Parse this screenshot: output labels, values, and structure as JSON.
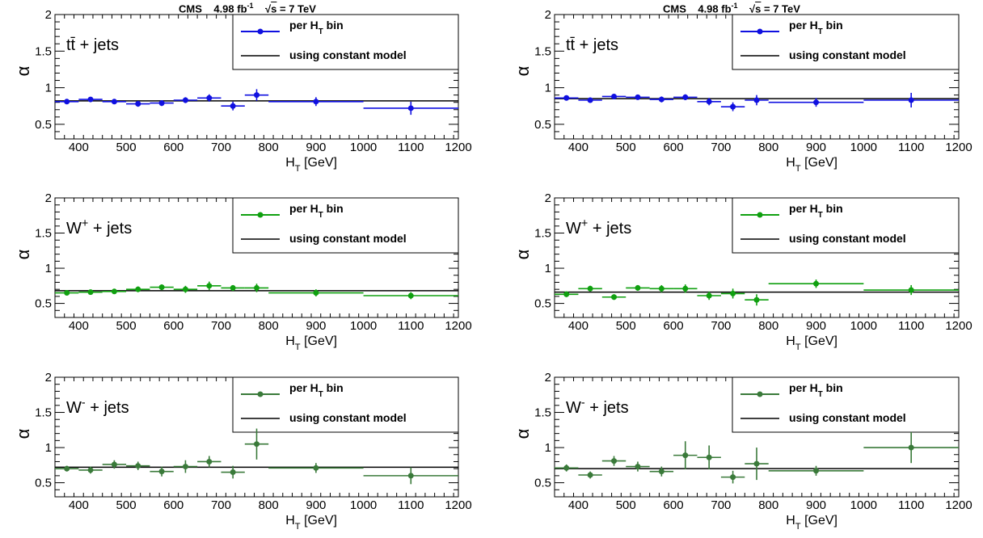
{
  "header": {
    "experiment": "CMS",
    "lumi": "4.98 fb",
    "lumi_exp": "-1",
    "energy_prefix": "√",
    "energy_var": "s",
    "energy_value": " = 7 TeV"
  },
  "colors": {
    "ttbar": "#1010e0",
    "wplus": "#10a010",
    "wminus": "#3a7a3a",
    "constant": "#000000"
  },
  "chart_data": [
    {
      "type": "scatter",
      "title": "",
      "process": "tt̄ + jets",
      "column": "left",
      "xlabel": "H_T [GeV]",
      "ylabel": "α",
      "xlim": [
        350,
        1200
      ],
      "ylim": [
        0.3,
        2.0
      ],
      "xticks": [
        400,
        500,
        600,
        700,
        800,
        900,
        1000,
        1100,
        1200
      ],
      "yticks": [
        0.5,
        1,
        1.5,
        2
      ],
      "legend": {
        "placement": "top-right",
        "series": "per H_T bin",
        "line": "using constant model"
      },
      "constant": 0.82,
      "bins_low": [
        350,
        400,
        450,
        500,
        550,
        600,
        650,
        700,
        750,
        800,
        1000
      ],
      "bins_high": [
        400,
        450,
        500,
        550,
        600,
        650,
        700,
        750,
        800,
        1000,
        1200
      ],
      "x": [
        375,
        425,
        475,
        525,
        575,
        625,
        675,
        725,
        775,
        900,
        1100
      ],
      "y": [
        0.81,
        0.84,
        0.81,
        0.78,
        0.79,
        0.83,
        0.86,
        0.75,
        0.9,
        0.81,
        0.72
      ],
      "yerr": [
        0.03,
        0.03,
        0.03,
        0.04,
        0.04,
        0.04,
        0.05,
        0.06,
        0.08,
        0.06,
        0.09
      ]
    },
    {
      "type": "scatter",
      "title": "",
      "process": "tt̄ + jets",
      "column": "right",
      "xlabel": "H_T [GeV]",
      "ylabel": "α",
      "xlim": [
        350,
        1200
      ],
      "ylim": [
        0.3,
        2.0
      ],
      "xticks": [
        400,
        500,
        600,
        700,
        800,
        900,
        1000,
        1100,
        1200
      ],
      "yticks": [
        0.5,
        1,
        1.5,
        2
      ],
      "legend": {
        "placement": "top-right",
        "series": "per H_T bin",
        "line": "using constant model"
      },
      "constant": 0.85,
      "bins_low": [
        350,
        400,
        450,
        500,
        550,
        600,
        650,
        700,
        750,
        800,
        1000
      ],
      "bins_high": [
        400,
        450,
        500,
        550,
        600,
        650,
        700,
        750,
        800,
        1000,
        1200
      ],
      "x": [
        375,
        425,
        475,
        525,
        575,
        625,
        675,
        725,
        775,
        900,
        1100
      ],
      "y": [
        0.86,
        0.83,
        0.88,
        0.87,
        0.84,
        0.87,
        0.81,
        0.74,
        0.83,
        0.8,
        0.83
      ],
      "yerr": [
        0.03,
        0.03,
        0.03,
        0.03,
        0.04,
        0.04,
        0.05,
        0.06,
        0.07,
        0.06,
        0.1
      ]
    },
    {
      "type": "scatter",
      "title": "",
      "process": "W+ + jets",
      "process_base": "W",
      "process_sup": "+",
      "process_rest": " + jets",
      "column": "left",
      "xlabel": "H_T [GeV]",
      "ylabel": "α",
      "xlim": [
        350,
        1200
      ],
      "ylim": [
        0.3,
        2.0
      ],
      "xticks": [
        400,
        500,
        600,
        700,
        800,
        900,
        1000,
        1100,
        1200
      ],
      "yticks": [
        0.5,
        1,
        1.5,
        2
      ],
      "legend": {
        "placement": "top-right",
        "series": "per H_T bin",
        "line": "using constant model"
      },
      "constant": 0.68,
      "bins_low": [
        350,
        400,
        450,
        500,
        550,
        600,
        650,
        700,
        750,
        800,
        1000
      ],
      "bins_high": [
        400,
        450,
        500,
        550,
        600,
        650,
        700,
        750,
        800,
        1000,
        1200
      ],
      "x": [
        375,
        425,
        475,
        525,
        575,
        625,
        675,
        725,
        775,
        900,
        1100
      ],
      "y": [
        0.65,
        0.66,
        0.67,
        0.7,
        0.73,
        0.7,
        0.75,
        0.72,
        0.72,
        0.65,
        0.61
      ],
      "yerr": [
        0.03,
        0.03,
        0.03,
        0.04,
        0.04,
        0.05,
        0.06,
        0.04,
        0.06,
        0.05,
        0.05
      ]
    },
    {
      "type": "scatter",
      "title": "",
      "process": "W+ + jets",
      "process_base": "W",
      "process_sup": "+",
      "process_rest": " + jets",
      "column": "right",
      "xlabel": "H_T [GeV]",
      "ylabel": "α",
      "xlim": [
        350,
        1200
      ],
      "ylim": [
        0.3,
        2.0
      ],
      "xticks": [
        400,
        500,
        600,
        700,
        800,
        900,
        1000,
        1100,
        1200
      ],
      "yticks": [
        0.5,
        1,
        1.5,
        2
      ],
      "legend": {
        "placement": "top-right",
        "series": "per H_T bin",
        "line": "using constant model"
      },
      "constant": 0.66,
      "bins_low": [
        350,
        400,
        450,
        500,
        550,
        600,
        650,
        700,
        750,
        800,
        1000
      ],
      "bins_high": [
        400,
        450,
        500,
        550,
        600,
        650,
        700,
        750,
        800,
        1000,
        1200
      ],
      "x": [
        375,
        425,
        475,
        525,
        575,
        625,
        675,
        725,
        775,
        900,
        1100
      ],
      "y": [
        0.63,
        0.71,
        0.59,
        0.72,
        0.71,
        0.71,
        0.61,
        0.64,
        0.55,
        0.78,
        0.69
      ],
      "yerr": [
        0.04,
        0.04,
        0.04,
        0.04,
        0.05,
        0.06,
        0.06,
        0.07,
        0.08,
        0.06,
        0.07
      ]
    },
    {
      "type": "scatter",
      "title": "",
      "process": "W- + jets",
      "process_base": "W",
      "process_sup": "-",
      "process_rest": " + jets",
      "column": "left",
      "xlabel": "H_T [GeV]",
      "ylabel": "α",
      "xlim": [
        350,
        1200
      ],
      "ylim": [
        0.3,
        2.0
      ],
      "xticks": [
        400,
        500,
        600,
        700,
        800,
        900,
        1000,
        1100,
        1200
      ],
      "yticks": [
        0.5,
        1,
        1.5,
        2
      ],
      "legend": {
        "placement": "top-right",
        "series": "per H_T bin",
        "line": "using constant model"
      },
      "constant": 0.72,
      "bins_low": [
        350,
        400,
        450,
        500,
        550,
        600,
        650,
        700,
        750,
        800,
        1000
      ],
      "bins_high": [
        400,
        450,
        500,
        550,
        600,
        650,
        700,
        750,
        800,
        1000,
        1200
      ],
      "x": [
        375,
        425,
        475,
        525,
        575,
        625,
        675,
        725,
        775,
        900,
        1100
      ],
      "y": [
        0.7,
        0.68,
        0.76,
        0.74,
        0.66,
        0.73,
        0.8,
        0.65,
        1.05,
        0.71,
        0.6
      ],
      "yerr": [
        0.04,
        0.05,
        0.06,
        0.06,
        0.07,
        0.09,
        0.08,
        0.09,
        0.22,
        0.07,
        0.12
      ]
    },
    {
      "type": "scatter",
      "title": "",
      "process": "W- + jets",
      "process_base": "W",
      "process_sup": "-",
      "process_rest": " + jets",
      "column": "right",
      "xlabel": "H_T [GeV]",
      "ylabel": "α",
      "xlim": [
        350,
        1200
      ],
      "ylim": [
        0.3,
        2.0
      ],
      "xticks": [
        400,
        500,
        600,
        700,
        800,
        900,
        1000,
        1100,
        1200
      ],
      "yticks": [
        0.5,
        1,
        1.5,
        2
      ],
      "legend": {
        "placement": "top-right",
        "series": "per H_T bin",
        "line": "using constant model"
      },
      "constant": 0.7,
      "bins_low": [
        350,
        400,
        450,
        500,
        550,
        600,
        650,
        700,
        750,
        800,
        1000
      ],
      "bins_high": [
        400,
        450,
        500,
        550,
        600,
        650,
        700,
        750,
        800,
        1000,
        1200
      ],
      "x": [
        375,
        425,
        475,
        525,
        575,
        625,
        675,
        725,
        775,
        900,
        1100
      ],
      "y": [
        0.71,
        0.61,
        0.81,
        0.73,
        0.66,
        0.89,
        0.86,
        0.58,
        0.77,
        0.67,
        1.0
      ],
      "yerr": [
        0.05,
        0.05,
        0.07,
        0.07,
        0.07,
        0.2,
        0.17,
        0.09,
        0.23,
        0.07,
        0.22
      ]
    }
  ]
}
